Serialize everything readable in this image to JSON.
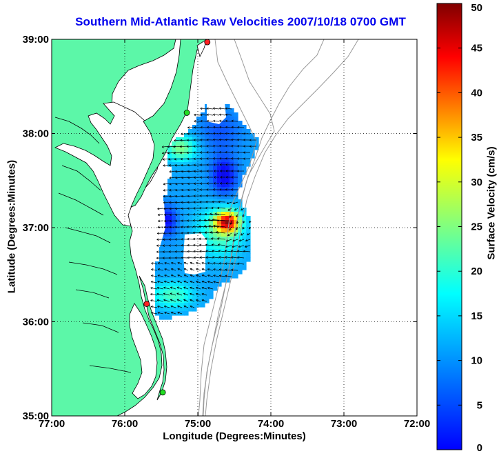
{
  "map": {
    "title": "Southern Mid-Atlantic Raw Velocities 2007/10/18 0700 GMT",
    "xlabel": "Longitude (Degrees:Minutes)",
    "ylabel": "Latitude (Degrees:Minutes)",
    "lon_ticks": [
      "77:00",
      "76:00",
      "75:00",
      "74:00",
      "73:00",
      "72:00"
    ],
    "lat_ticks": [
      "39:00",
      "38:00",
      "37:00",
      "36:00",
      "35:00"
    ],
    "lon_range": [
      -77,
      -72
    ],
    "lat_range": [
      35,
      39
    ]
  },
  "colorbar": {
    "label": "Surface Velocity (cm/s)",
    "ticks": [
      "50",
      "45",
      "40",
      "35",
      "30",
      "25",
      "20",
      "15",
      "10",
      "5",
      "0"
    ],
    "range": [
      0,
      50
    ],
    "colormap": "jet"
  },
  "colors": {
    "land": "#5cf7a8",
    "coastline": "#000000",
    "bathymetry": "#999999",
    "arrows": "#000000",
    "title": "#0000ee"
  },
  "stations": [
    {
      "color": "#ff2222",
      "lon": -74.87,
      "lat": 38.97
    },
    {
      "color": "#22dd22",
      "lon": -75.15,
      "lat": 38.22
    },
    {
      "color": "#ff2222",
      "lon": -75.7,
      "lat": 36.19
    },
    {
      "color": "#22dd22",
      "lon": -75.48,
      "lat": 35.25
    }
  ]
}
